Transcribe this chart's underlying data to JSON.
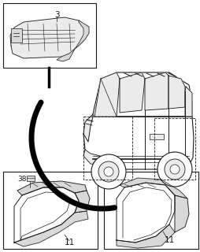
{
  "bg_color": "#ffffff",
  "line_color": "#1a1a1a",
  "black": "#000000",
  "gray_fill": "#d8d8d8",
  "light_gray": "#ebebeb",
  "part_labels": {
    "top_box": "3",
    "clip": "38",
    "bottom_left": "11",
    "bottom_right": "11"
  },
  "font_size": 6.5,
  "lw": 0.7
}
